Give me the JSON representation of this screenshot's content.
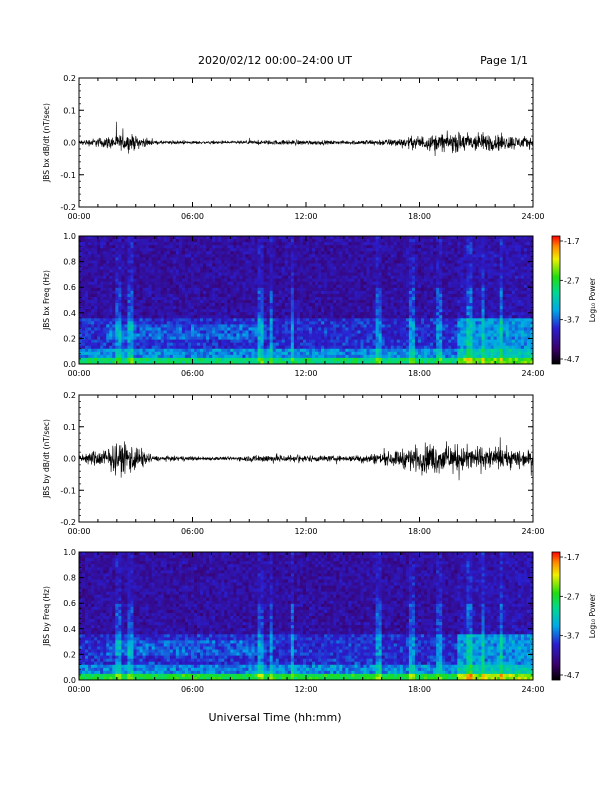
{
  "header": {
    "title": "2020/02/12  00:00–24:00 UT",
    "page": "Page 1/1"
  },
  "xlabel": "Universal Time (hh:mm)",
  "colorbar": {
    "label": "Log₁₀ Power",
    "ticks": [
      "-1.7",
      "-2.7",
      "-3.7",
      "-4.7"
    ],
    "range": [
      -4.7,
      -1.7
    ]
  },
  "chart_data": [
    {
      "type": "line",
      "ylabel": "JBS bx dB/dt (nT/sec)",
      "xlim": [
        0,
        24
      ],
      "ylim": [
        -0.2,
        0.2
      ],
      "x_ticks": [
        "00:00",
        "06:00",
        "12:00",
        "18:00",
        "24:00"
      ],
      "y_ticks": [
        "0.2",
        "0.1",
        "0.0",
        "-0.1",
        "-0.2"
      ],
      "amplitude_envelope": [
        {
          "hour": 0,
          "amp": 0.012
        },
        {
          "hour": 2.6,
          "amp": 0.05
        },
        {
          "hour": 4,
          "amp": 0.01
        },
        {
          "hour": 8,
          "amp": 0.008
        },
        {
          "hour": 11.5,
          "amp": 0.015
        },
        {
          "hour": 14,
          "amp": 0.01
        },
        {
          "hour": 16.5,
          "amp": 0.02
        },
        {
          "hour": 18,
          "amp": 0.04
        },
        {
          "hour": 20.5,
          "amp": 0.06
        },
        {
          "hour": 22,
          "amp": 0.05
        },
        {
          "hour": 24,
          "amp": 0.03
        }
      ]
    },
    {
      "type": "heatmap",
      "ylabel": "JBS bx Freq (Hz)",
      "xlim": [
        0,
        24
      ],
      "ylim": [
        0,
        1.0
      ],
      "x_ticks": [
        "00:00",
        "06:00",
        "12:00",
        "18:00",
        "24:00"
      ],
      "y_ticks": [
        "1.0",
        "0.8",
        "0.6",
        "0.4",
        "0.2",
        "0.0"
      ]
    },
    {
      "type": "line",
      "ylabel": "JBS by dB/dt (nT/sec)",
      "xlim": [
        0,
        24
      ],
      "ylim": [
        -0.2,
        0.2
      ],
      "x_ticks": [
        "00:00",
        "06:00",
        "12:00",
        "18:00",
        "24:00"
      ],
      "y_ticks": [
        "0.2",
        "0.1",
        "0.0",
        "-0.1",
        "-0.2"
      ],
      "amplitude_envelope": [
        {
          "hour": 0,
          "amp": 0.02
        },
        {
          "hour": 2.6,
          "amp": 0.1
        },
        {
          "hour": 4,
          "amp": 0.015
        },
        {
          "hour": 8,
          "amp": 0.01
        },
        {
          "hour": 10,
          "amp": 0.025
        },
        {
          "hour": 14,
          "amp": 0.015
        },
        {
          "hour": 16.5,
          "amp": 0.04
        },
        {
          "hour": 18.5,
          "amp": 0.09
        },
        {
          "hour": 21,
          "amp": 0.07
        },
        {
          "hour": 24,
          "amp": 0.05
        }
      ]
    },
    {
      "type": "heatmap",
      "ylabel": "JBS by Freq (Hz)",
      "xlim": [
        0,
        24
      ],
      "ylim": [
        0,
        1.0
      ],
      "x_ticks": [
        "00:00",
        "06:00",
        "12:00",
        "18:00",
        "24:00"
      ],
      "y_ticks": [
        "1.0",
        "0.8",
        "0.6",
        "0.4",
        "0.2",
        "0.0"
      ]
    }
  ]
}
